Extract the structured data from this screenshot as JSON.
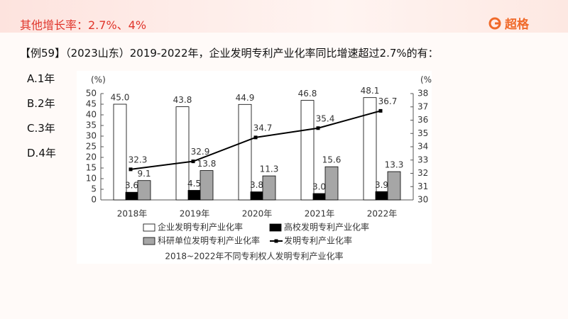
{
  "header": {
    "title": "其他增长率：2.7%、4%",
    "logo": "超格"
  },
  "question": "【例59】（2023山东）2019-2022年，企业发明专利产业化率同比增速超过2.7%的有：",
  "options": [
    "A.1年",
    "B.2年",
    "C.3年",
    "D.4年"
  ],
  "chart_data": {
    "type": "bar",
    "caption": "2018~2022年不同专利权人发明专利产业化率",
    "y_unit": "(%)",
    "y2_unit": "(%)",
    "categories": [
      "2018年",
      "2019年",
      "2020年",
      "2021年",
      "2022年"
    ],
    "series": [
      {
        "name": "企业发明专利产业化率",
        "color": "#ffffff",
        "values": [
          45.0,
          43.8,
          44.9,
          46.8,
          48.1
        ],
        "value_labels": [
          "45.0",
          "43.8",
          "44.9",
          "46.8",
          "48.1"
        ]
      },
      {
        "name": "高校发明专利产业化率",
        "color": "#000000",
        "values": [
          3.6,
          4.5,
          3.8,
          3.0,
          3.9
        ],
        "value_labels": [
          "3.6",
          "4.5",
          "3.8",
          "3.0",
          "3.9"
        ]
      },
      {
        "name": "科研单位发明专利产业化率",
        "color": "#a6a6a6",
        "values": [
          9.1,
          13.8,
          11.3,
          15.6,
          13.3
        ],
        "value_labels": [
          "9.1",
          "13.8",
          "11.3",
          "15.6",
          "13.3"
        ]
      },
      {
        "name": "发明专利产业化率",
        "type": "line",
        "axis": "y2",
        "color": "#000000",
        "values": [
          32.3,
          32.9,
          34.7,
          35.4,
          36.7
        ],
        "value_labels": [
          "32.3",
          "32.9",
          "34.7",
          "35.4",
          "36.7"
        ]
      }
    ],
    "ylim": [
      0,
      50
    ],
    "yticks": [
      0,
      5,
      10,
      15,
      20,
      25,
      30,
      35,
      40,
      45,
      50
    ],
    "y2lim": [
      30,
      38
    ],
    "y2ticks": [
      30,
      31,
      32,
      33,
      34,
      35,
      36,
      37,
      38
    ]
  }
}
